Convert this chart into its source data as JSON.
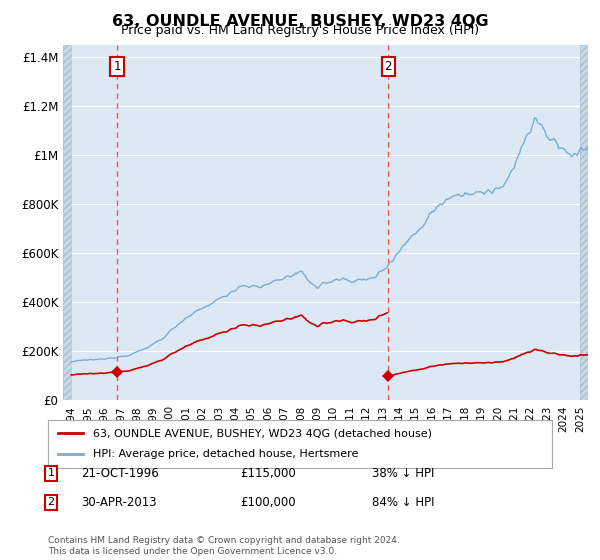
{
  "title": "63, OUNDLE AVENUE, BUSHEY, WD23 4QG",
  "subtitle": "Price paid vs. HM Land Registry's House Price Index (HPI)",
  "legend_line1": "63, OUNDLE AVENUE, BUSHEY, WD23 4QG (detached house)",
  "legend_line2": "HPI: Average price, detached house, Hertsmere",
  "annotation1": {
    "label": "1",
    "date": "21-OCT-1996",
    "price": "£115,000",
    "note": "38% ↓ HPI"
  },
  "annotation2": {
    "label": "2",
    "date": "30-APR-2013",
    "price": "£100,000",
    "note": "84% ↓ HPI"
  },
  "footer": "Contains HM Land Registry data © Crown copyright and database right 2024.\nThis data is licensed under the Open Government Licence v3.0.",
  "hpi_color": "#7aadd4",
  "price_color": "#cc0000",
  "marker1_x": 1996.8,
  "marker1_y": 115000,
  "marker2_x": 2013.33,
  "marker2_y": 100000,
  "vline1_x": 1996.8,
  "vline2_x": 2013.33,
  "ylim": [
    0,
    1450000
  ],
  "xlim": [
    1993.5,
    2025.5
  ],
  "background_color": "#dce9f5",
  "hatch_facecolor": "#c8d8e8",
  "grid_color": "#ffffff"
}
